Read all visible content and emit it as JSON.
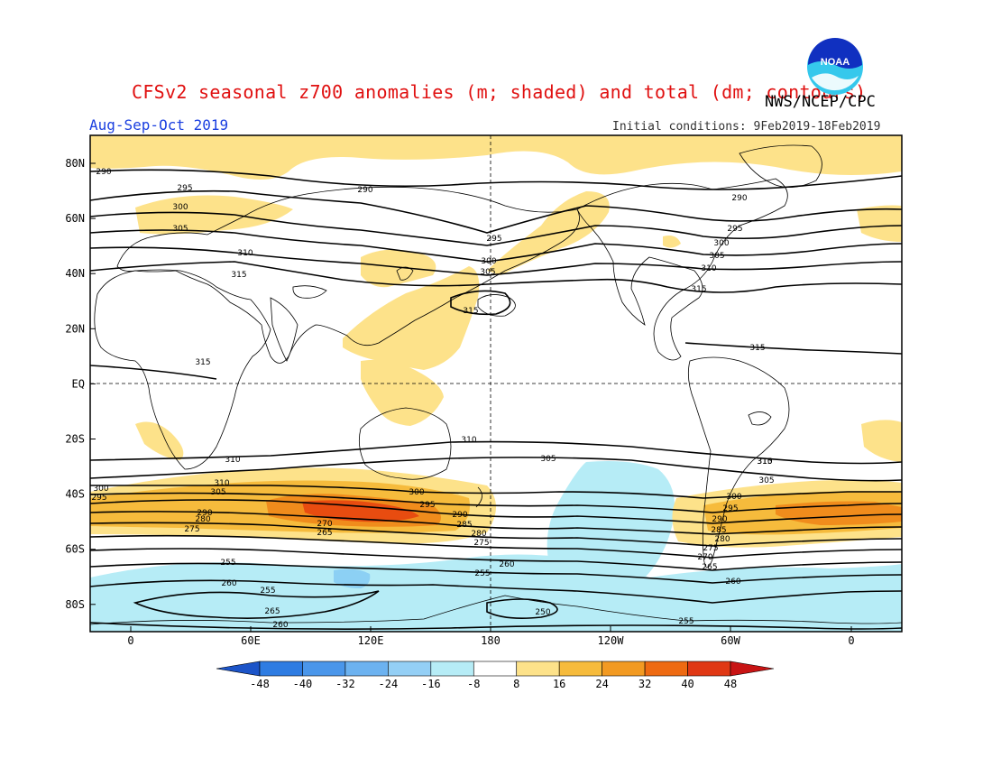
{
  "title": "CFSv2 seasonal z700 anomalies (m; shaded) and total (dm; contours)",
  "organization": "NWS/NCEP/CPC",
  "period": "Aug-Sep-Oct 2019",
  "initial_conditions": "Initial conditions: 9Feb2019-18Feb2019",
  "logo": {
    "icon": "noaa-logo",
    "text": "NOAA"
  },
  "colors": {
    "positive": [
      "#fde28a",
      "#f6bb3c",
      "#f08c1c",
      "#e84c10",
      "#c81414"
    ],
    "negative": [
      "#b6ecf6",
      "#8cd0f4",
      "#5aa8ec",
      "#2e7ce2",
      "#1c54c8"
    ],
    "neutral": "#ffffff"
  },
  "axes": {
    "lat_labels": [
      "80N",
      "60N",
      "40N",
      "20N",
      "EQ",
      "20S",
      "40S",
      "60S",
      "80S"
    ],
    "lon_labels": [
      "0",
      "60E",
      "120E",
      "180",
      "120W",
      "60W",
      "0"
    ]
  },
  "colorbar": {
    "labels": [
      "-48",
      "-40",
      "-32",
      "-24",
      "-16",
      "-8",
      "8",
      "16",
      "24",
      "32",
      "40",
      "48"
    ],
    "colors": [
      "#1c54c8",
      "#2e7ce2",
      "#4a96ea",
      "#6cb2f0",
      "#94cff5",
      "#b6ecf6",
      "#ffffff",
      "#fde28a",
      "#f6bb3c",
      "#f29a22",
      "#ee6a12",
      "#e03814",
      "#c81414"
    ]
  },
  "contour_labels": [
    "290",
    "295",
    "300",
    "305",
    "290",
    "310",
    "315",
    "295",
    "300",
    "305",
    "310",
    "315",
    "290",
    "295",
    "300",
    "305",
    "310",
    "315",
    "315",
    "315",
    "310",
    "305",
    "310",
    "305",
    "315",
    "310",
    "305",
    "300",
    "295",
    "300",
    "295",
    "290",
    "280",
    "275",
    "290",
    "285",
    "280",
    "275",
    "270",
    "265",
    "300",
    "295",
    "290",
    "285",
    "280",
    "275",
    "270",
    "265",
    "260",
    "255",
    "260",
    "255",
    "265",
    "260",
    "255",
    "250",
    "260",
    "255"
  ]
}
